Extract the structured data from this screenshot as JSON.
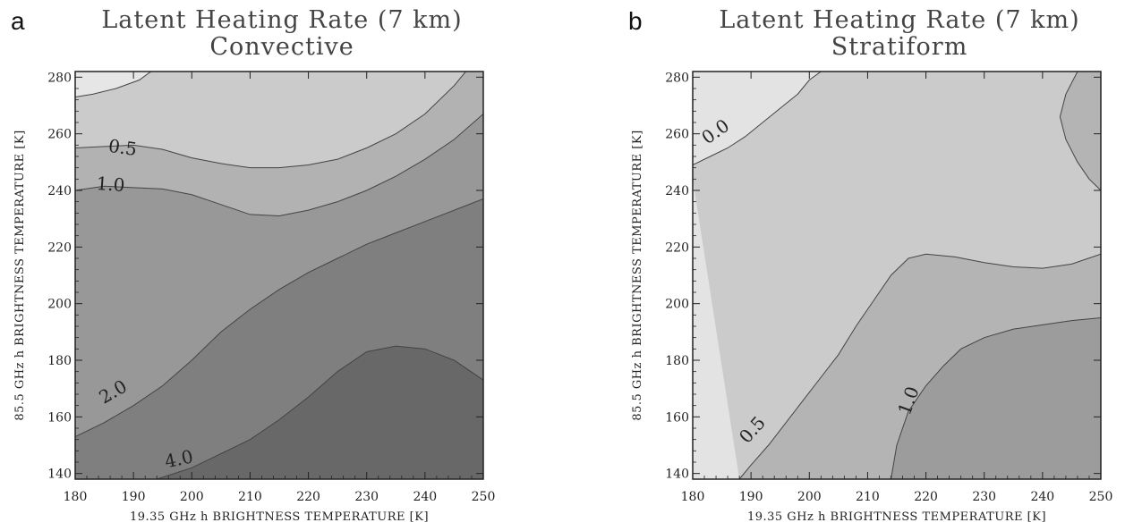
{
  "chart_data": [
    {
      "type": "contour",
      "panel_letter": "a",
      "title": "Latent Heating Rate (7 km)",
      "subtitle": "Convective",
      "xlabel": "19.35 GHz h BRIGHTNESS TEMPERATURE [K]",
      "ylabel": "85.5 GHz h BRIGHTNESS TEMPERATURE [K]",
      "xlim": [
        180,
        250
      ],
      "ylim": [
        138,
        282
      ],
      "xticks": [
        180,
        190,
        200,
        210,
        220,
        230,
        240,
        250
      ],
      "yticks": [
        140,
        160,
        180,
        200,
        220,
        240,
        260,
        280
      ],
      "contour_labels": [
        "0.5",
        "1.0",
        "2.0",
        "4.0"
      ],
      "levels": [
        0.0,
        0.5,
        1.0,
        2.0,
        4.0
      ],
      "fill_colors": [
        "#e6e6e6",
        "#cbcbcb",
        "#b2b2b2",
        "#989898",
        "#7f7f7f",
        "#686868"
      ],
      "contours": [
        {
          "level": 0.0,
          "x": [
            180,
            183,
            187,
            191,
            193
          ],
          "y": [
            273,
            274,
            276,
            279,
            282
          ]
        },
        {
          "level": 0.5,
          "x": [
            180,
            185,
            190,
            195,
            200,
            205,
            210,
            215,
            220,
            225,
            230,
            235,
            240,
            245,
            247
          ],
          "y": [
            255,
            255.5,
            256,
            254.5,
            251.5,
            249.5,
            248,
            248,
            249,
            251,
            255,
            260,
            267,
            277,
            282
          ]
        },
        {
          "level": 1.0,
          "x": [
            180,
            185,
            190,
            195,
            200,
            205,
            210,
            215,
            220,
            225,
            230,
            235,
            240,
            245,
            250
          ],
          "y": [
            240,
            241.5,
            241,
            240.5,
            238.5,
            235,
            231.5,
            231,
            233,
            236,
            240,
            245,
            251,
            258,
            267
          ]
        },
        {
          "level": 2.0,
          "x": [
            180,
            185,
            190,
            195,
            200,
            205,
            210,
            215,
            220,
            225,
            230,
            235,
            240,
            245,
            250
          ],
          "y": [
            153,
            158,
            164,
            171,
            180,
            190,
            198,
            205,
            211,
            216,
            221,
            225,
            229,
            233,
            237
          ]
        },
        {
          "level": 4.0,
          "x": [
            194,
            200,
            205,
            210,
            215,
            220,
            225,
            230,
            235,
            240,
            245,
            250
          ],
          "y": [
            138,
            142,
            147,
            152,
            159,
            167,
            176,
            183,
            185,
            184,
            180,
            173
          ]
        }
      ]
    },
    {
      "type": "contour",
      "panel_letter": "b",
      "title": "Latent Heating Rate (7 km)",
      "subtitle": "Stratiform",
      "xlabel": "19.35 GHz h BRIGHTNESS TEMPERATURE [K]",
      "ylabel": "85.5 GHz h BRIGHTNESS TEMPERATURE [K]",
      "xlim": [
        180,
        250
      ],
      "ylim": [
        138,
        282
      ],
      "xticks": [
        180,
        190,
        200,
        210,
        220,
        230,
        240,
        250
      ],
      "yticks": [
        140,
        160,
        180,
        200,
        220,
        240,
        260,
        280
      ],
      "contour_labels": [
        "0.0",
        "0.5",
        "1.0"
      ],
      "levels": [
        0.0,
        0.5,
        1.0
      ],
      "fill_colors": [
        "#e3e3e3",
        "#cbcbcb",
        "#b4b4b4",
        "#9c9c9c"
      ],
      "contours": [
        {
          "level": 0.0,
          "x": [
            180,
            183,
            186,
            189,
            192,
            195,
            198,
            200,
            202
          ],
          "y": [
            249,
            252,
            255,
            259,
            264,
            269,
            274,
            279,
            282
          ]
        },
        {
          "level": 0.5,
          "x": [
            188,
            190,
            193,
            196,
            199,
            202,
            205,
            208,
            211,
            214,
            217,
            220,
            225,
            230,
            235,
            240,
            245,
            250
          ],
          "y": [
            138,
            143,
            150,
            158,
            166,
            174,
            182,
            192,
            201,
            210,
            216,
            217.5,
            216.5,
            214.5,
            213,
            212.5,
            214,
            217.5
          ]
        },
        {
          "level": 1.0,
          "x": [
            214,
            215,
            217,
            220,
            223,
            226,
            230,
            235,
            240,
            245,
            250
          ],
          "y": [
            138,
            150,
            162,
            171,
            178,
            184,
            188,
            191,
            192.5,
            194,
            195
          ]
        },
        {
          "level": 1.0,
          "x": [
            246,
            244,
            243,
            244,
            246,
            248,
            250
          ],
          "y": [
            282,
            274,
            266,
            258,
            250,
            244,
            240
          ]
        }
      ]
    }
  ]
}
